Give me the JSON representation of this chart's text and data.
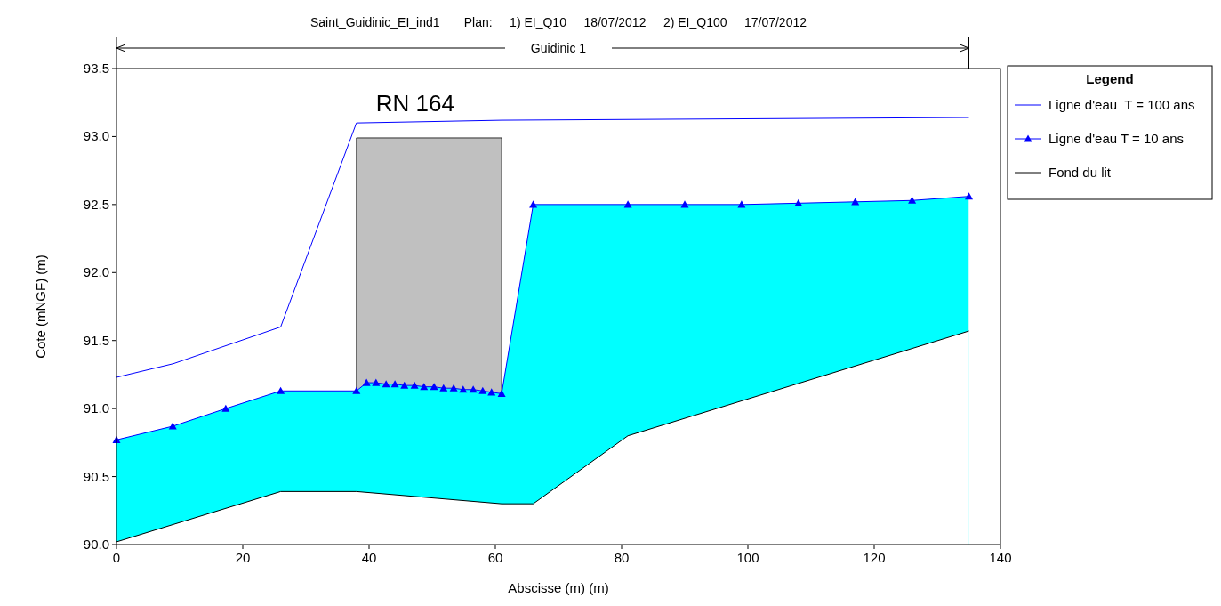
{
  "chart_data": {
    "type": "line",
    "title": "Saint_Guidinic_EI_ind1       Plan:     1) EI_Q10     18/07/2012     2) EI_Q100     17/07/2012",
    "xlabel": "Abscisse (m) (m)",
    "ylabel": "Cote (mNGF) (m)",
    "legend_title": "Legend",
    "legend": "top right",
    "grid": false,
    "xlim": [
      0,
      140
    ],
    "xticks": [
      0,
      20,
      40,
      60,
      80,
      100,
      120,
      140
    ],
    "ylim": [
      90,
      93.5
    ],
    "yticks": [
      {
        "value": 90,
        "label": "90.0"
      },
      {
        "value": 90.5,
        "label": "90.5"
      },
      {
        "value": 91,
        "label": "91.0"
      },
      {
        "value": 91.5,
        "label": "91.5"
      },
      {
        "value": 92,
        "label": "92.0"
      },
      {
        "value": 92.5,
        "label": "92.5"
      },
      {
        "value": 93,
        "label": "93.0"
      },
      {
        "value": 93.5,
        "label": "93.5"
      }
    ],
    "annotations": [
      "Guidinic 1",
      "RN 164"
    ],
    "bands": [
      {
        "axis": "x",
        "from": 0,
        "to": 135,
        "color": "#00ffff"
      }
    ],
    "series": [
      {
        "type": "area",
        "color": "#c0c0c0",
        "x": [
          38,
          61
        ],
        "values": [
          92.99,
          92.99
        ]
      },
      {
        "name": "Ligne d'eau  T = 100 ans",
        "color": "#0000ff",
        "x": [
          0,
          9,
          26,
          38,
          61,
          135
        ],
        "values": [
          91.23,
          91.33,
          91.6,
          93.1,
          93.12,
          93.14
        ]
      },
      {
        "name": "Ligne d'eau T = 10 ans",
        "color": "#0000ff",
        "marker": "triangle",
        "x": [
          0,
          8.9,
          17.3,
          26,
          38,
          39.6,
          41.1,
          42.7,
          44.1,
          45.6,
          47.2,
          48.7,
          50.3,
          51.8,
          53.4,
          54.9,
          56.5,
          58.0,
          59.4,
          61,
          66,
          81,
          90,
          99,
          108,
          117,
          126,
          135
        ],
        "values": [
          90.77,
          90.87,
          91.0,
          91.13,
          91.13,
          91.19,
          91.19,
          91.18,
          91.18,
          91.17,
          91.17,
          91.16,
          91.16,
          91.15,
          91.15,
          91.14,
          91.14,
          91.13,
          91.12,
          91.11,
          92.5,
          92.5,
          92.5,
          92.5,
          92.51,
          92.52,
          92.53,
          92.56
        ]
      },
      {
        "name": "Fond du lit",
        "type": "area",
        "color": "#000000",
        "x": [
          0,
          26,
          38,
          61,
          66,
          81,
          135
        ],
        "values": [
          90.02,
          90.39,
          90.39,
          90.3,
          90.3,
          90.8,
          91.57
        ]
      }
    ]
  }
}
